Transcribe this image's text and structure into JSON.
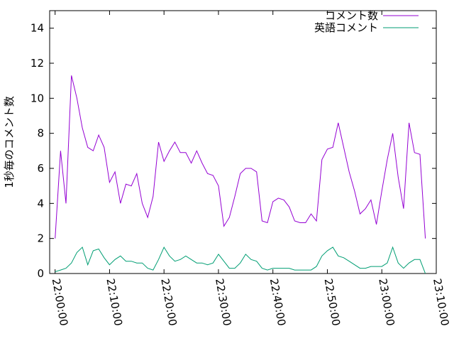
{
  "chart_data": {
    "type": "line",
    "y_label": "1秒毎のコメント数",
    "x": [
      "22:00:00",
      "22:01:00",
      "22:02:00",
      "22:03:00",
      "22:04:00",
      "22:05:00",
      "22:06:00",
      "22:07:00",
      "22:08:00",
      "22:09:00",
      "22:10:00",
      "22:11:00",
      "22:12:00",
      "22:13:00",
      "22:14:00",
      "22:15:00",
      "22:16:00",
      "22:17:00",
      "22:18:00",
      "22:19:00",
      "22:20:00",
      "22:21:00",
      "22:22:00",
      "22:23:00",
      "22:24:00",
      "22:25:00",
      "22:26:00",
      "22:27:00",
      "22:28:00",
      "22:29:00",
      "22:30:00",
      "22:31:00",
      "22:32:00",
      "22:33:00",
      "22:34:00",
      "22:35:00",
      "22:36:00",
      "22:37:00",
      "22:38:00",
      "22:39:00",
      "22:40:00",
      "22:41:00",
      "22:42:00",
      "22:43:00",
      "22:44:00",
      "22:45:00",
      "22:46:00",
      "22:47:00",
      "22:48:00",
      "22:49:00",
      "22:50:00",
      "22:51:00",
      "22:52:00",
      "22:53:00",
      "22:54:00",
      "22:55:00",
      "22:56:00",
      "22:57:00",
      "22:58:00",
      "22:59:00",
      "23:00:00",
      "23:01:00",
      "23:02:00",
      "23:03:00",
      "23:04:00",
      "23:05:00",
      "23:06:00",
      "23:07:00",
      "23:08:00"
    ],
    "series": [
      {
        "name": "コメント数",
        "color": "#9400d3",
        "values": [
          2.0,
          7.0,
          4.0,
          11.3,
          10.0,
          8.3,
          7.2,
          7.0,
          7.9,
          7.2,
          5.2,
          5.8,
          4.0,
          5.1,
          5.0,
          5.7,
          4.0,
          3.2,
          4.4,
          7.5,
          6.4,
          7.0,
          7.5,
          6.9,
          6.9,
          6.3,
          7.0,
          6.3,
          5.7,
          5.6,
          5.0,
          2.7,
          3.2,
          4.4,
          5.7,
          6.0,
          6.0,
          5.8,
          3.0,
          2.9,
          4.1,
          4.3,
          4.2,
          3.8,
          3.0,
          2.9,
          2.9,
          3.4,
          3.0,
          6.5,
          7.1,
          7.2,
          8.6,
          7.2,
          5.8,
          4.7,
          3.4,
          3.7,
          4.2,
          2.8,
          4.7,
          6.5,
          8.0,
          5.5,
          3.7,
          8.6,
          6.9,
          6.8,
          2.0
        ]
      },
      {
        "name": "英語コメント",
        "color": "#009e73",
        "values": [
          0.1,
          0.2,
          0.3,
          0.6,
          1.2,
          1.5,
          0.5,
          1.3,
          1.4,
          0.9,
          0.5,
          0.8,
          1.0,
          0.7,
          0.7,
          0.6,
          0.6,
          0.3,
          0.2,
          0.8,
          1.5,
          1.0,
          0.7,
          0.8,
          1.0,
          0.8,
          0.6,
          0.6,
          0.5,
          0.6,
          1.1,
          0.7,
          0.3,
          0.3,
          0.6,
          1.1,
          0.8,
          0.7,
          0.3,
          0.2,
          0.3,
          0.3,
          0.3,
          0.3,
          0.2,
          0.2,
          0.2,
          0.2,
          0.4,
          1.0,
          1.3,
          1.5,
          1.0,
          0.9,
          0.7,
          0.5,
          0.3,
          0.3,
          0.4,
          0.4,
          0.4,
          0.6,
          1.5,
          0.6,
          0.3,
          0.6,
          0.8,
          0.8,
          0.0
        ]
      }
    ],
    "xlim": [
      "21:59:00",
      "23:10:00"
    ],
    "xticks": [
      "22:00:00",
      "22:10:00",
      "22:20:00",
      "22:30:00",
      "22:40:00",
      "22:50:00",
      "23:00:00",
      "23:10:00"
    ],
    "ylim": [
      0,
      15
    ],
    "yticks": [
      0,
      2,
      4,
      6,
      8,
      10,
      12,
      14
    ],
    "legend": "top-right"
  }
}
